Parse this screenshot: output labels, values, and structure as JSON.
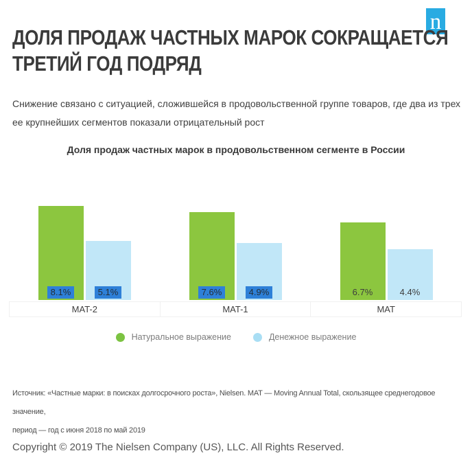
{
  "header": {
    "title_line1": "ДОЛЯ ПРОДАЖ ЧАСТНЫХ МАРОК СОКРАЩАЕТСЯ",
    "title_line2": "ТРЕТИЙ ГОД ПОДРЯД",
    "subtitle_line1": "Снижение связано с ситуацией, сложившейся в продовольственной группе товаров, где два из трех",
    "subtitle_line2": "ее крупнейших сегментов показали отрицательный рост",
    "logo_letter": "n",
    "logo_color": "#29abe2"
  },
  "chart_data": {
    "type": "bar",
    "title": "Доля продаж частных марок в продовольственном сегменте в России",
    "categories": [
      "MAT-2",
      "MAT-1",
      "MAT"
    ],
    "series": [
      {
        "name": "Натуральное выражение",
        "color": "#8cc63f",
        "values": [
          8.1,
          7.6,
          6.7
        ],
        "labels": [
          "8.1%",
          "7.6%",
          "6.7%"
        ]
      },
      {
        "name": "Денежное выражение",
        "color": "#c1e7f8",
        "values": [
          5.1,
          4.9,
          4.4
        ],
        "labels": [
          "5.1%",
          "4.9%",
          "4.4%"
        ]
      }
    ],
    "highlighted_categories": [
      true,
      true,
      false
    ],
    "highlight_color": "#2e80d8",
    "unit": "%",
    "ylim": [
      0,
      11.8
    ],
    "grid": false,
    "legend_position": "bottom"
  },
  "legend": {
    "items": [
      {
        "label": "Натуральное выражение",
        "color": "#7cc342"
      },
      {
        "label": "Денежное выражение",
        "color": "#a9def4"
      }
    ]
  },
  "footer": {
    "source_line1": "Источник: «Частные марки: в поисках долгосрочного роста», Nielsen. MAT — Moving Annual Total, скользящее среднегодовое значение,",
    "source_line2": "период  — год с июня 2018 по май 2019",
    "copyright": "Copyright © 2019 The Nielsen Company (US), LLC. All Rights Reserved."
  }
}
